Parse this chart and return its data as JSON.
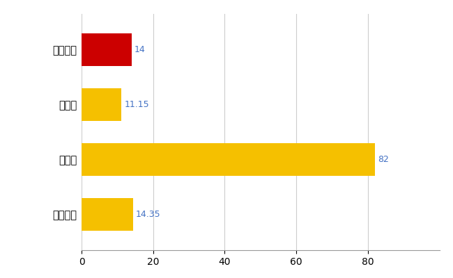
{
  "categories": [
    "つがる市",
    "県平均",
    "県最大",
    "全国平均"
  ],
  "values": [
    14,
    11.15,
    82,
    14.35
  ],
  "bar_colors": [
    "#cc0000",
    "#f5c000",
    "#f5c000",
    "#f5c000"
  ],
  "value_labels": [
    "14",
    "11.15",
    "82",
    "14.35"
  ],
  "value_label_color": "#4472c4",
  "xlim": [
    0,
    100
  ],
  "xticks": [
    0,
    20,
    40,
    60,
    80
  ],
  "grid_color": "#cccccc",
  "background_color": "#ffffff",
  "bar_height": 0.6,
  "label_fontsize": 10.5,
  "tick_fontsize": 10,
  "value_label_fontsize": 9
}
